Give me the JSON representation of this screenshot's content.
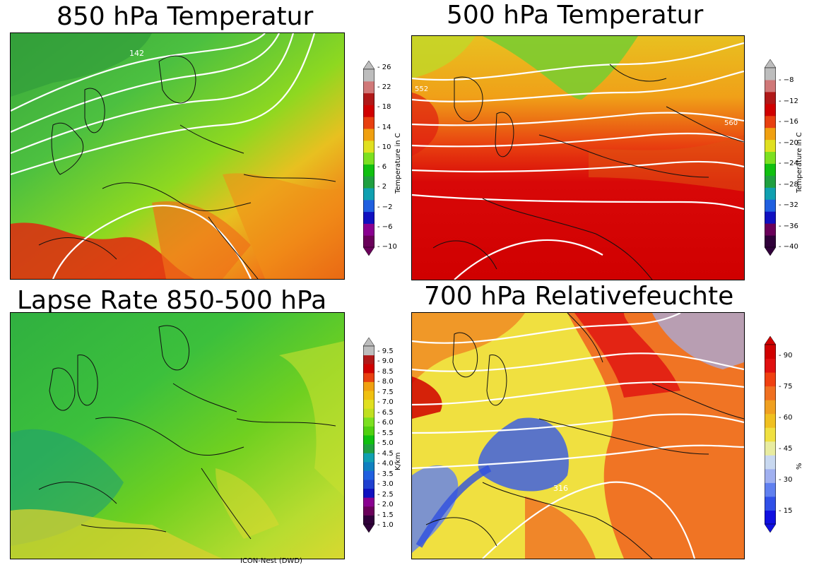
{
  "panels": [
    {
      "title": "850 hPa Temperatur",
      "colorbar": {
        "label": "Temperature in C",
        "ticks": [
          "26",
          "22",
          "18",
          "14",
          "10",
          "6",
          "2",
          "−2",
          "−6",
          "−10"
        ],
        "colors": [
          "#6a005a",
          "#8a0090",
          "#1010c0",
          "#2060e0",
          "#10a0b0",
          "#20a040",
          "#10c010",
          "#7ce020",
          "#e0e020",
          "#f0a010",
          "#e84010",
          "#d00000",
          "#b01818",
          "#d07878",
          "#bdbdbd"
        ]
      },
      "contour_labels": [
        "142"
      ]
    },
    {
      "title": "500 hPa Temperatur",
      "colorbar": {
        "label": "Temperature in C",
        "ticks": [
          "−8",
          "−12",
          "−16",
          "−20",
          "−24",
          "−28",
          "−32",
          "−36",
          "−40"
        ],
        "colors": [
          "#30003a",
          "#6a005a",
          "#1010c0",
          "#2060e0",
          "#10a0b0",
          "#20a040",
          "#10c010",
          "#7ce020",
          "#e0e020",
          "#f0a010",
          "#e84010",
          "#d00000",
          "#b01818",
          "#d07878",
          "#bdbdbd"
        ]
      },
      "contour_labels": [
        "552",
        "560"
      ]
    },
    {
      "title": "Lapse Rate 850-500 hPa",
      "colorbar": {
        "label": "K/km",
        "ticks": [
          "9.5",
          "9.0",
          "8.5",
          "8.0",
          "7.5",
          "7.0",
          "6.5",
          "6.0",
          "5.5",
          "5.0",
          "4.5",
          "4.0",
          "3.5",
          "3.0",
          "2.5",
          "2.0",
          "1.5",
          "1.0"
        ],
        "colors": [
          "#30003a",
          "#6a005a",
          "#8a0090",
          "#1010c0",
          "#2040d0",
          "#2060e0",
          "#1080c0",
          "#10a0b0",
          "#20a040",
          "#10c010",
          "#50d010",
          "#7ce020",
          "#c0e020",
          "#e0e020",
          "#f0c010",
          "#f0a010",
          "#e84010",
          "#d00000",
          "#b01818",
          "#bdbdbd"
        ]
      },
      "contour_labels": []
    },
    {
      "title": "700 hPa Relativefeuchte",
      "colorbar": {
        "label": "%",
        "ticks": [
          "90",
          "75",
          "60",
          "45",
          "30",
          "15"
        ],
        "colors": [
          "#1010e0",
          "#3050e8",
          "#6080f0",
          "#a0b0f0",
          "#c8d8f0",
          "#e8eca0",
          "#f0e040",
          "#f0c020",
          "#f0a020",
          "#f07020",
          "#f04010",
          "#e01010",
          "#d00000"
        ]
      },
      "contour_labels": [
        "316"
      ]
    }
  ],
  "credit": "ICON-Nest (DWD)"
}
